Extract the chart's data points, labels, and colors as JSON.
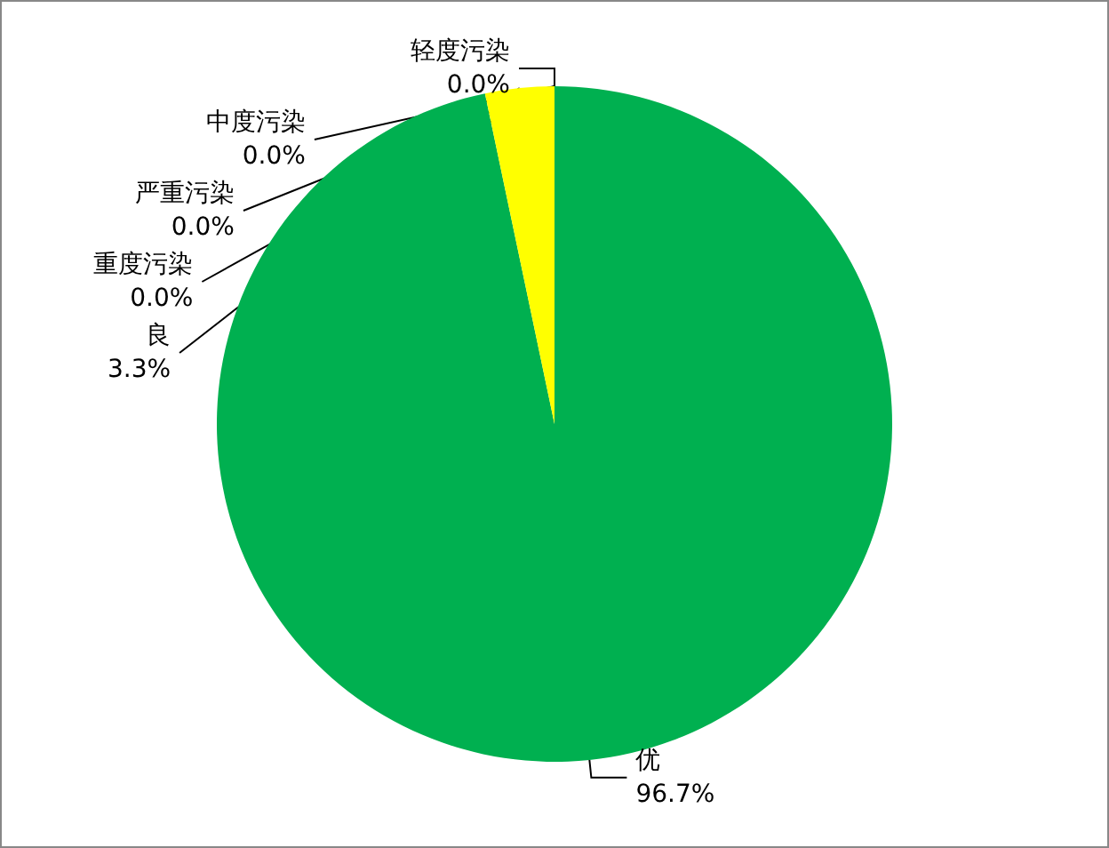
{
  "chart_data": {
    "type": "pie",
    "categories": [
      "优",
      "良",
      "轻度污染",
      "中度污染",
      "严重污染",
      "重度污染"
    ],
    "values": [
      96.7,
      3.3,
      0.0,
      0.0,
      0.0,
      0.0
    ],
    "colors": [
      "#00b050",
      "#ffff00",
      "#ff9900",
      "#ff0000",
      "#7030a0",
      "#993300"
    ],
    "value_labels": [
      "96.7%",
      "3.3%",
      "0.0%",
      "0.0%",
      "0.0%",
      "0.0%"
    ],
    "legend": false
  }
}
